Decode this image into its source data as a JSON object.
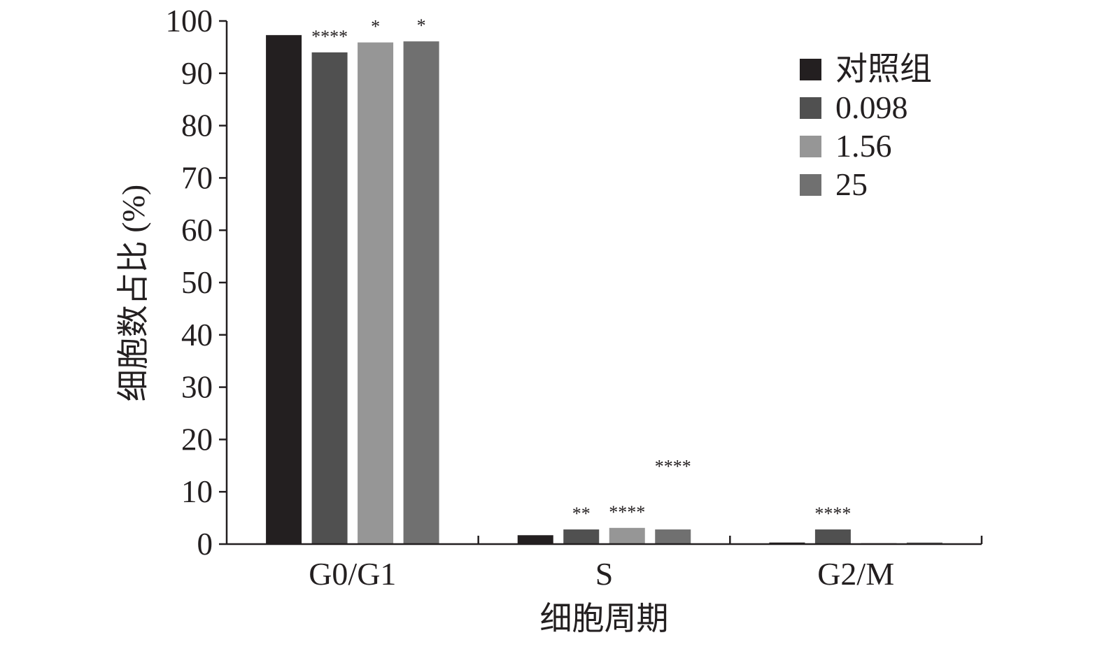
{
  "chart_data": {
    "type": "bar",
    "title": "",
    "xlabel": "细胞周期",
    "ylabel": "细胞数占比 (%)",
    "ylim": [
      0,
      100
    ],
    "yticks": [
      "0",
      "10",
      "20",
      "30",
      "40",
      "50",
      "60",
      "70",
      "80",
      "90",
      "100"
    ],
    "categories": [
      "G0/G1",
      "S",
      "G2/M"
    ],
    "series": [
      {
        "name": "对照组",
        "color": "#231f20",
        "values": [
          97.3,
          1.7,
          0.3
        ]
      },
      {
        "name": "0.098",
        "color": "#505050",
        "values": [
          94.0,
          2.8,
          2.8
        ]
      },
      {
        "name": "1.56",
        "color": "#969696",
        "values": [
          95.9,
          3.1,
          0.2
        ]
      },
      {
        "name": "25",
        "color": "#707070",
        "values": [
          96.1,
          2.8,
          0.3
        ]
      }
    ],
    "annotations": [
      {
        "series": 1,
        "category": 0,
        "text": "****"
      },
      {
        "series": 2,
        "category": 0,
        "text": "*"
      },
      {
        "series": 3,
        "category": 0,
        "text": "*"
      },
      {
        "series": 1,
        "category": 1,
        "text": "**"
      },
      {
        "series": 2,
        "category": 1,
        "text": "****"
      },
      {
        "series": 3,
        "category": 1,
        "text": "****",
        "value": 11.8
      },
      {
        "series": 1,
        "category": 2,
        "text": "****"
      }
    ],
    "grid": false,
    "legend_position": "top-right"
  }
}
